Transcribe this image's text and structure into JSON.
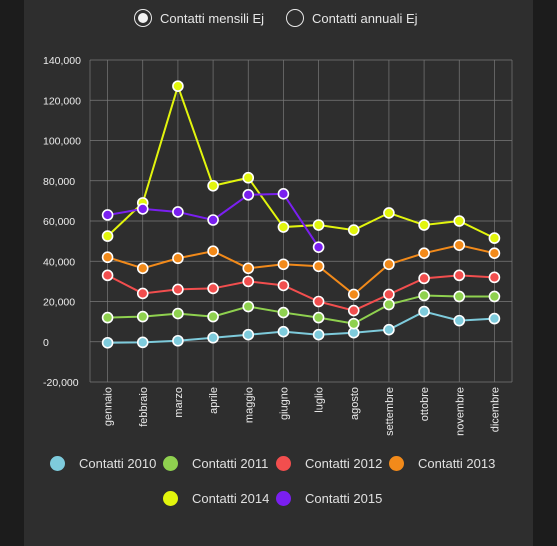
{
  "toggle": {
    "options": [
      {
        "label": "Contatti mensili Ej",
        "selected": true
      },
      {
        "label": "Contatti annuali Ej",
        "selected": false
      }
    ]
  },
  "chart_data": {
    "type": "line",
    "categories": [
      "gennaio",
      "febbraio",
      "marzo",
      "aprile",
      "maggio",
      "giugno",
      "luglio",
      "agosto",
      "settembre",
      "ottobre",
      "novembre",
      "dicembre"
    ],
    "ylim": [
      -20000,
      140000
    ],
    "yticks": [
      -20000,
      0,
      20000,
      40000,
      60000,
      80000,
      100000,
      120000,
      140000
    ],
    "ytick_labels": [
      "-20,000",
      "0",
      "20,000",
      "40,000",
      "60,000",
      "80,000",
      "100,000",
      "120,000",
      "140,000"
    ],
    "grid": true,
    "legend_position": "bottom",
    "series": [
      {
        "name": "Contatti 2010",
        "color": "#7ecbdc",
        "values": [
          -500,
          -300,
          500,
          2000,
          3500,
          5000,
          3500,
          4500,
          6000,
          15000,
          10500,
          11500
        ]
      },
      {
        "name": "Contatti 2011",
        "color": "#8fd14f",
        "values": [
          12000,
          12500,
          14000,
          12500,
          17500,
          14500,
          12000,
          9000,
          18500,
          23000,
          22500,
          22500
        ]
      },
      {
        "name": "Contatti 2012",
        "color": "#f24e4e",
        "values": [
          33000,
          24000,
          26000,
          26500,
          30000,
          28000,
          20000,
          15500,
          23500,
          31500,
          33000,
          32000
        ]
      },
      {
        "name": "Contatti 2013",
        "color": "#f28a1a",
        "values": [
          42000,
          36500,
          41500,
          45000,
          36500,
          38500,
          37500,
          23500,
          38500,
          44000,
          48000,
          44000
        ]
      },
      {
        "name": "Contatti 2014",
        "color": "#e2f50d",
        "values": [
          52500,
          69000,
          127000,
          77500,
          81500,
          57000,
          58000,
          55500,
          64000,
          58000,
          60000,
          51500
        ]
      },
      {
        "name": "Contatti 2015",
        "color": "#7a1ff0",
        "values": [
          63000,
          66000,
          64500,
          60500,
          73000,
          73500,
          47000,
          null,
          null,
          null,
          null,
          null
        ]
      }
    ]
  }
}
